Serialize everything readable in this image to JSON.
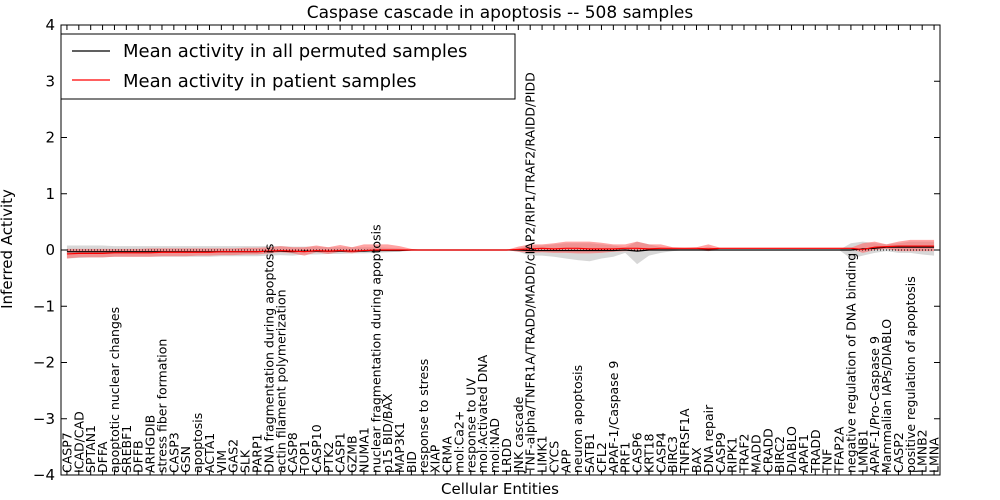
{
  "chart_data": {
    "type": "line",
    "title": "Caspase cascade in apoptosis -- 508 samples",
    "xlabel": "Cellular Entities",
    "ylabel": "Inferred Activity",
    "ylim": [
      -4,
      4
    ],
    "yticks": [
      -4,
      -3,
      -2,
      -1,
      0,
      1,
      2,
      3,
      4
    ],
    "legend": {
      "placement": "top-left",
      "entries": [
        "Mean activity in all permuted samples",
        "Mean activity in patient samples"
      ]
    },
    "colors": {
      "permuted": "#000000",
      "patient": "#ff0000",
      "permuted_band": "#b0b0b0",
      "patient_band": "#ff6666"
    },
    "categories": [
      "CASP7",
      "ICAD/CAD",
      "SPTAN1",
      "DFFA",
      "apoptotic nuclear changes",
      "SREBF1",
      "DFFB",
      "ARHGDIB",
      "stress fiber formation",
      "CASP3",
      "GSN",
      "apoptosis",
      "ACTA1",
      "VIM",
      "GAS2",
      "SLK",
      "PARP1",
      "DNA fragmentation during apoptosis",
      "actin filament polymerization",
      "CASP8",
      "TOP1",
      "CASP10",
      "PTK2",
      "CASP1",
      "GZMB",
      "NUMA1",
      "nuclear fragmentation during apoptosis",
      "p15 BID/BAX",
      "MAP3K1",
      "BID",
      "response to stress",
      "XIAP",
      "CRMA",
      "mol:Ca2+",
      "response to UV",
      "mol:Activated DNA",
      "mol:NAD",
      "LRDD",
      "JNK cascade",
      "TNF-alpha/TNFR1A/TRADD/MADD/cIAP2/RIP1/TRAF2/RAIDD/PIDD",
      "LIMK1",
      "CYCS",
      "APP",
      "neuron apoptosis",
      "SATB1",
      "CFL2",
      "APAF-1/Caspase 9",
      "PRF1",
      "CASP6",
      "KRT18",
      "CASP4",
      "BIRC3",
      "TNFRSF1A",
      "BAX",
      "DNA repair",
      "CASP9",
      "RIPK1",
      "TRAF2",
      "MADD",
      "CRADD",
      "BIRC2",
      "DIABLO",
      "APAF1",
      "TRADD",
      "TNF",
      "TFAP2A",
      "negative regulation of DNA binding",
      "LMNB1",
      "APAF-1/Pro-Caspase 9",
      "Mammalian IAPs/DIABLO",
      "CASP2",
      "positive regulation of apoptosis",
      "LMNB2",
      "LMNA"
    ],
    "series": [
      {
        "name": "Mean activity in all permuted samples",
        "values": [
          -0.03,
          -0.03,
          -0.03,
          -0.03,
          -0.03,
          -0.03,
          -0.03,
          -0.03,
          -0.03,
          -0.03,
          -0.03,
          -0.03,
          -0.03,
          -0.03,
          -0.03,
          -0.03,
          -0.03,
          -0.02,
          -0.02,
          -0.03,
          -0.02,
          -0.02,
          -0.02,
          -0.02,
          -0.02,
          -0.02,
          -0.01,
          -0.01,
          -0.01,
          0,
          0,
          0,
          0,
          0,
          0,
          0,
          0,
          0,
          0,
          -0.01,
          -0.01,
          -0.01,
          -0.01,
          -0.01,
          -0.01,
          -0.01,
          -0.01,
          0,
          -0.02,
          0,
          0,
          0,
          0,
          0,
          0,
          0,
          0,
          0,
          0,
          0,
          0,
          0,
          0,
          0,
          0,
          0,
          0,
          0.02,
          0.03,
          0.05,
          0.05,
          0.05,
          0.05,
          0.05
        ],
        "band_low": [
          -0.15,
          -0.14,
          -0.13,
          -0.13,
          -0.12,
          -0.12,
          -0.12,
          -0.12,
          -0.12,
          -0.12,
          -0.12,
          -0.12,
          -0.12,
          -0.11,
          -0.11,
          -0.11,
          -0.11,
          -0.1,
          -0.09,
          -0.1,
          -0.08,
          -0.08,
          -0.07,
          -0.07,
          -0.06,
          -0.06,
          -0.05,
          -0.04,
          -0.03,
          -0.01,
          0,
          0,
          0,
          0,
          0,
          0,
          0,
          0,
          -0.03,
          -0.1,
          -0.1,
          -0.12,
          -0.15,
          -0.18,
          -0.2,
          -0.15,
          -0.12,
          -0.05,
          -0.25,
          -0.1,
          -0.05,
          -0.02,
          0,
          0,
          -0.02,
          0,
          0,
          0,
          0,
          0,
          0,
          0,
          0,
          0,
          0,
          0,
          -0.15,
          -0.1,
          -0.05,
          -0.02,
          -0.05,
          -0.05,
          -0.08,
          -0.1
        ],
        "band_high": [
          0.08,
          0.08,
          0.08,
          0.08,
          0.07,
          0.07,
          0.07,
          0.07,
          0.07,
          0.07,
          0.07,
          0.07,
          0.07,
          0.07,
          0.07,
          0.07,
          0.07,
          0.07,
          0.07,
          0.06,
          0.06,
          0.06,
          0.05,
          0.05,
          0.05,
          0.05,
          0.05,
          0.04,
          0.03,
          0.01,
          0,
          0,
          0,
          0,
          0,
          0,
          0,
          0,
          0.03,
          0.08,
          0.08,
          0.1,
          0.12,
          0.12,
          0.12,
          0.1,
          0.08,
          0.05,
          0.15,
          0.1,
          0.05,
          0.02,
          0,
          0,
          0.06,
          0,
          0,
          0,
          0,
          0,
          0,
          0,
          0,
          0,
          0,
          0,
          0.12,
          0.15,
          0.12,
          0.1,
          0.12,
          0.15,
          0.15,
          0.15
        ]
      },
      {
        "name": "Mean activity in patient samples",
        "values": [
          -0.07,
          -0.06,
          -0.06,
          -0.06,
          -0.05,
          -0.05,
          -0.05,
          -0.05,
          -0.04,
          -0.04,
          -0.04,
          -0.04,
          -0.04,
          -0.03,
          -0.03,
          -0.03,
          -0.03,
          -0.02,
          -0.01,
          -0.02,
          -0.03,
          -0.01,
          -0.02,
          -0.01,
          -0.02,
          -0.01,
          0,
          0,
          0,
          0,
          0,
          0,
          0,
          0,
          0,
          0,
          0,
          0,
          0.01,
          0.02,
          0.03,
          0.02,
          0.03,
          0.03,
          0.02,
          0.02,
          0.02,
          0.03,
          0.03,
          0.02,
          0.03,
          0.03,
          0.03,
          0.03,
          0.02,
          0.03,
          0.03,
          0.03,
          0.03,
          0.03,
          0.03,
          0.03,
          0.03,
          0.03,
          0.03,
          0.03,
          0.03,
          0.01,
          0.05,
          0.06,
          0.07,
          0.07,
          0.07,
          0.07
        ],
        "band_low": [
          -0.15,
          -0.13,
          -0.13,
          -0.13,
          -0.12,
          -0.12,
          -0.12,
          -0.12,
          -0.11,
          -0.11,
          -0.11,
          -0.1,
          -0.1,
          -0.09,
          -0.09,
          -0.08,
          -0.08,
          -0.06,
          -0.04,
          -0.06,
          -0.1,
          -0.04,
          -0.07,
          -0.03,
          -0.06,
          -0.02,
          0,
          0,
          0,
          0,
          0,
          0,
          0,
          0,
          0,
          0,
          0,
          0,
          -0.03,
          -0.05,
          -0.04,
          -0.05,
          -0.05,
          -0.06,
          -0.06,
          -0.05,
          -0.03,
          -0.02,
          -0.02,
          -0.01,
          0,
          0,
          0,
          0.01,
          -0.02,
          0.02,
          0.02,
          0.02,
          0.02,
          0.02,
          0.02,
          0.02,
          0.02,
          0.02,
          0.02,
          0.02,
          0.02,
          -0.05,
          0,
          0.02,
          -0.02,
          -0.02,
          -0.02,
          -0.02
        ],
        "band_high": [
          0.02,
          0.02,
          0.02,
          0.02,
          0.02,
          0.02,
          0.02,
          0.03,
          0.03,
          0.03,
          0.03,
          0.03,
          0.03,
          0.03,
          0.03,
          0.04,
          0.04,
          0.05,
          0.07,
          0.05,
          0.05,
          0.08,
          0.05,
          0.09,
          0.05,
          0.1,
          0.1,
          0.1,
          0.07,
          0.02,
          0,
          0,
          0,
          0,
          0,
          0,
          0,
          0,
          0.06,
          0.1,
          0.1,
          0.12,
          0.15,
          0.15,
          0.15,
          0.13,
          0.1,
          0.1,
          0.15,
          0.1,
          0.1,
          0.05,
          0.04,
          0.05,
          0.1,
          0.04,
          0.04,
          0.04,
          0.04,
          0.04,
          0.04,
          0.04,
          0.04,
          0.04,
          0.04,
          0.04,
          0.04,
          0.12,
          0.15,
          0.1,
          0.15,
          0.18,
          0.18,
          0.18
        ]
      }
    ]
  }
}
